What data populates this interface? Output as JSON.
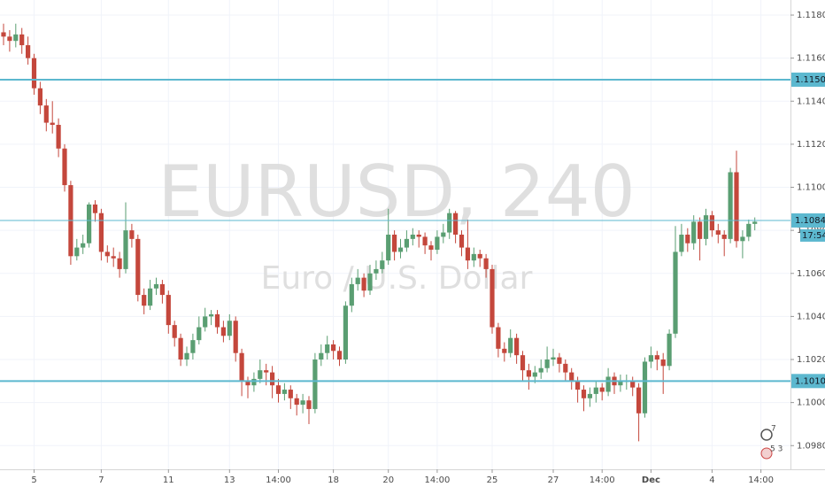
{
  "chart_data": {
    "type": "candlestick",
    "watermark_title": "EURUSD, 240",
    "watermark_subtitle": "Euro / U.S. Dollar",
    "up_color": "#5a9e72",
    "down_color": "#c4473c",
    "grid": true,
    "xlim": [
      -0.58,
      128.84
    ],
    "ylim": [
      1.0969,
      1.1187
    ],
    "xticks": [
      {
        "value": 5,
        "label": "5"
      },
      {
        "value": 16,
        "label": "7"
      },
      {
        "value": 27,
        "label": "11"
      },
      {
        "value": 37,
        "label": "13"
      },
      {
        "value": 45,
        "label": "14:00"
      },
      {
        "value": 54,
        "label": "18"
      },
      {
        "value": 63,
        "label": "20"
      },
      {
        "value": 71,
        "label": "14:00"
      },
      {
        "value": 80,
        "label": "25"
      },
      {
        "value": 90,
        "label": "27"
      },
      {
        "value": 98,
        "label": "14:00"
      },
      {
        "value": 106,
        "label": "Dec"
      },
      {
        "value": 116,
        "label": "4"
      },
      {
        "value": 124,
        "label": "14:00"
      }
    ],
    "yticks": [
      {
        "value": 1.118,
        "label": "1.11800"
      },
      {
        "value": 1.116,
        "label": "1.11600"
      },
      {
        "value": 1.114,
        "label": "1.11400"
      },
      {
        "value": 1.112,
        "label": "1.11200"
      },
      {
        "value": 1.11,
        "label": "1.11000"
      },
      {
        "value": 1.108,
        "label": "1.10800"
      },
      {
        "value": 1.106,
        "label": "1.10600"
      },
      {
        "value": 1.104,
        "label": "1.10400"
      },
      {
        "value": 1.102,
        "label": "1.10200"
      },
      {
        "value": 1.1,
        "label": "1.10000"
      },
      {
        "value": 1.098,
        "label": "1.09800"
      }
    ],
    "hlines": [
      {
        "value": 1.115,
        "label": "1.11500",
        "color": "#5cb8cf"
      },
      {
        "value": 1.101,
        "label": "1.10100",
        "color": "#5cb8cf"
      }
    ],
    "price_line": {
      "value": 1.10846,
      "label": "1.10846",
      "countdown": "17:54",
      "color": "#5cb8cf"
    },
    "markers": [
      "7",
      "5 3"
    ],
    "open": [
      1.1172,
      1.117,
      1.1168,
      1.1171,
      1.1166,
      1.116,
      1.1146,
      1.1138,
      1.113,
      1.1129,
      1.1118,
      1.1101,
      1.1068,
      1.1072,
      1.1074,
      1.1092,
      1.1088,
      1.107,
      1.1068,
      1.1067,
      1.1062,
      1.108,
      1.1076,
      1.105,
      1.1045,
      1.1053,
      1.1055,
      1.105,
      1.1036,
      1.103,
      1.102,
      1.1023,
      1.1029,
      1.1035,
      1.104,
      1.1041,
      1.1035,
      1.1031,
      1.1038,
      1.1023,
      1.101,
      1.1008,
      1.1011,
      1.1015,
      1.1014,
      1.1008,
      1.1004,
      1.1006,
      1.1002,
      1.0999,
      1.1001,
      1.0997,
      1.102,
      1.1023,
      1.1027,
      1.1024,
      1.102,
      1.1045,
      1.1055,
      1.1058,
      1.1052,
      1.106,
      1.1062,
      1.1066,
      1.1078,
      1.107,
      1.1072,
      1.1076,
      1.1078,
      1.1077,
      1.1073,
      1.1071,
      1.1077,
      1.1079,
      1.1088,
      1.1078,
      1.1072,
      1.1066,
      1.1069,
      1.1067,
      1.1062,
      1.1035,
      1.1025,
      1.1023,
      1.103,
      1.1022,
      1.1015,
      1.1012,
      1.1014,
      1.1016,
      1.102,
      1.1021,
      1.1018,
      1.1014,
      1.101,
      1.1006,
      1.1002,
      1.1004,
      1.1007,
      1.1005,
      1.1012,
      1.1008,
      1.101,
      1.101,
      1.1007,
      1.0995,
      1.1019,
      1.1022,
      1.102,
      1.1017,
      1.1032,
      1.107,
      1.1078,
      1.1074,
      1.1084,
      1.1076,
      1.1087,
      1.108,
      1.1078,
      1.1076,
      1.1107,
      1.1075,
      1.1077,
      1.1083
    ],
    "high": [
      1.1176,
      1.1173,
      1.1176,
      1.1174,
      1.117,
      1.1162,
      1.1149,
      1.1141,
      1.114,
      1.1132,
      1.112,
      1.1103,
      1.1076,
      1.1078,
      1.1093,
      1.1094,
      1.109,
      1.1073,
      1.1072,
      1.107,
      1.1093,
      1.1083,
      1.1078,
      1.1053,
      1.1057,
      1.1058,
      1.1057,
      1.1052,
      1.1038,
      1.1032,
      1.1026,
      1.1032,
      1.104,
      1.1044,
      1.1043,
      1.1043,
      1.1038,
      1.1041,
      1.104,
      1.1025,
      1.1012,
      1.1014,
      1.102,
      1.1018,
      1.1017,
      1.1011,
      1.1009,
      1.1008,
      1.1004,
      1.1004,
      1.1003,
      1.1023,
      1.1027,
      1.1031,
      1.1029,
      1.1026,
      1.1047,
      1.1058,
      1.1062,
      1.106,
      1.1064,
      1.1066,
      1.107,
      1.109,
      1.108,
      1.1076,
      1.108,
      1.1081,
      1.108,
      1.1079,
      1.1075,
      1.108,
      1.1083,
      1.109,
      1.1089,
      1.108,
      1.1085,
      1.1072,
      1.1071,
      1.1069,
      1.1064,
      1.1037,
      1.1028,
      1.1034,
      1.1032,
      1.1024,
      1.1018,
      1.1017,
      1.102,
      1.1026,
      1.1025,
      1.1023,
      1.102,
      1.1016,
      1.1012,
      1.1008,
      1.1007,
      1.101,
      1.1009,
      1.1016,
      1.1014,
      1.1013,
      1.1013,
      1.1012,
      1.1009,
      1.1021,
      1.1026,
      1.1024,
      1.1023,
      1.1034,
      1.1082,
      1.1083,
      1.1081,
      1.1087,
      1.1086,
      1.109,
      1.1089,
      1.1083,
      1.108,
      1.1109,
      1.1117,
      1.108,
      1.1085,
      1.1086
    ],
    "low": [
      1.1166,
      1.1163,
      1.1165,
      1.1162,
      1.1157,
      1.1143,
      1.1134,
      1.1126,
      1.1125,
      1.1114,
      1.1098,
      1.1064,
      1.1066,
      1.1069,
      1.1072,
      1.1084,
      1.1066,
      1.1065,
      1.1063,
      1.1058,
      1.106,
      1.1072,
      1.1047,
      1.1041,
      1.1043,
      1.105,
      1.1046,
      1.1032,
      1.1026,
      1.1017,
      1.1017,
      1.102,
      1.1027,
      1.1033,
      1.1036,
      1.1032,
      1.1028,
      1.1029,
      1.1019,
      1.1003,
      1.1002,
      1.1005,
      1.1009,
      1.1008,
      1.1002,
      1.1,
      1.1001,
      1.0997,
      1.0994,
      1.0995,
      1.099,
      1.0995,
      1.1017,
      1.102,
      1.102,
      1.1017,
      1.1018,
      1.1042,
      1.1052,
      1.1049,
      1.105,
      1.1057,
      1.106,
      1.1064,
      1.1066,
      1.1067,
      1.107,
      1.1073,
      1.1072,
      1.1069,
      1.1066,
      1.1069,
      1.1074,
      1.1076,
      1.1074,
      1.1068,
      1.1062,
      1.1063,
      1.1063,
      1.1058,
      1.1032,
      1.1021,
      1.1019,
      1.1021,
      1.1018,
      1.101,
      1.1006,
      1.1009,
      1.1011,
      1.1014,
      1.1017,
      1.1014,
      1.101,
      1.1006,
      1.1,
      1.0996,
      1.0998,
      1.1,
      1.1001,
      1.1003,
      1.1004,
      1.1005,
      1.1006,
      1.1003,
      1.0982,
      1.0993,
      1.1016,
      1.1015,
      1.1004,
      1.1015,
      1.103,
      1.1068,
      1.107,
      1.1071,
      1.1066,
      1.1073,
      1.1077,
      1.1074,
      1.1068,
      1.1074,
      1.1072,
      1.1067,
      1.1075,
      1.108
    ],
    "close": [
      1.117,
      1.1168,
      1.1171,
      1.1166,
      1.116,
      1.1146,
      1.1138,
      1.113,
      1.1129,
      1.1118,
      1.1101,
      1.1068,
      1.1072,
      1.1074,
      1.1092,
      1.1088,
      1.107,
      1.1068,
      1.1067,
      1.1062,
      1.108,
      1.1076,
      1.105,
      1.1045,
      1.1053,
      1.1055,
      1.105,
      1.1036,
      1.103,
      1.102,
      1.1023,
      1.1029,
      1.1035,
      1.104,
      1.1041,
      1.1035,
      1.1031,
      1.1038,
      1.1023,
      1.101,
      1.1008,
      1.1011,
      1.1015,
      1.1014,
      1.1008,
      1.1004,
      1.1006,
      1.1002,
      1.0999,
      1.1001,
      1.0997,
      1.102,
      1.1023,
      1.1027,
      1.1024,
      1.102,
      1.1045,
      1.1055,
      1.1058,
      1.1052,
      1.106,
      1.1062,
      1.1066,
      1.1078,
      1.107,
      1.1072,
      1.1076,
      1.1078,
      1.1077,
      1.1073,
      1.1071,
      1.1077,
      1.1079,
      1.1088,
      1.1078,
      1.1072,
      1.1066,
      1.1069,
      1.1067,
      1.1062,
      1.1035,
      1.1025,
      1.1023,
      1.103,
      1.1022,
      1.1015,
      1.1012,
      1.1014,
      1.1016,
      1.102,
      1.1021,
      1.1018,
      1.1014,
      1.101,
      1.1006,
      1.1002,
      1.1004,
      1.1007,
      1.1005,
      1.1012,
      1.1008,
      1.101,
      1.101,
      1.1007,
      1.0995,
      1.1019,
      1.1022,
      1.102,
      1.1017,
      1.1032,
      1.107,
      1.1078,
      1.1074,
      1.1084,
      1.1076,
      1.1087,
      1.108,
      1.1078,
      1.1076,
      1.1107,
      1.1075,
      1.1077,
      1.1083,
      1.1084
    ]
  }
}
